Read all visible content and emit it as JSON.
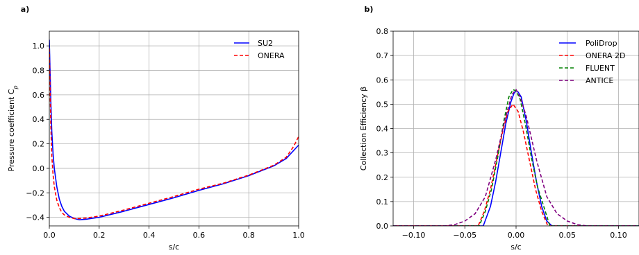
{
  "chart_data": [
    {
      "type": "line",
      "panel": "a)",
      "xlabel": "s/c",
      "ylabel": "Pressure coefficient C",
      "ylabel_sub": "p",
      "xlim": [
        0.0,
        1.0
      ],
      "ylim": [
        -0.47,
        1.12
      ],
      "xticks": [
        "0.0",
        "0.2",
        "0.4",
        "0.6",
        "0.8",
        "1.0"
      ],
      "yticks": [
        "−0.4",
        "−0.2",
        "0.0",
        "0.2",
        "0.4",
        "0.6",
        "0.8",
        "1.0"
      ],
      "grid": true,
      "legend_position": "top-right",
      "series": [
        {
          "name": "SU2",
          "color": "#0000ff",
          "style": "solid",
          "x": [
            0.0,
            0.003,
            0.006,
            0.01,
            0.015,
            0.02,
            0.03,
            0.04,
            0.05,
            0.06,
            0.08,
            0.1,
            0.12,
            0.15,
            0.2,
            0.3,
            0.4,
            0.5,
            0.6,
            0.7,
            0.8,
            0.9,
            0.95,
            1.0
          ],
          "y": [
            1.05,
            0.8,
            0.55,
            0.3,
            0.12,
            0.0,
            -0.15,
            -0.25,
            -0.31,
            -0.35,
            -0.39,
            -0.41,
            -0.42,
            -0.415,
            -0.4,
            -0.35,
            -0.295,
            -0.24,
            -0.18,
            -0.125,
            -0.06,
            0.02,
            0.08,
            0.19
          ]
        },
        {
          "name": "ONERA",
          "color": "#ff0000",
          "style": "dashed",
          "x": [
            0.0,
            0.003,
            0.006,
            0.01,
            0.015,
            0.02,
            0.03,
            0.04,
            0.05,
            0.06,
            0.08,
            0.1,
            0.12,
            0.15,
            0.2,
            0.3,
            0.4,
            0.5,
            0.6,
            0.7,
            0.8,
            0.9,
            0.95,
            0.98,
            1.0
          ],
          "y": [
            0.98,
            0.65,
            0.35,
            0.1,
            -0.05,
            -0.15,
            -0.26,
            -0.32,
            -0.36,
            -0.38,
            -0.4,
            -0.41,
            -0.41,
            -0.405,
            -0.39,
            -0.34,
            -0.285,
            -0.23,
            -0.17,
            -0.12,
            -0.055,
            0.025,
            0.09,
            0.18,
            0.26
          ]
        }
      ]
    },
    {
      "type": "line",
      "panel": "b)",
      "xlabel": "s/c",
      "ylabel": "Collection Efficiency β",
      "xlim": [
        -0.12,
        0.12
      ],
      "ylim": [
        0.0,
        0.8
      ],
      "xticks": [
        "−0.10",
        "−0.05",
        "0.00",
        "0.05",
        "0.10"
      ],
      "yticks": [
        "0.0",
        "0.1",
        "0.2",
        "0.3",
        "0.4",
        "0.5",
        "0.6",
        "0.7",
        "0.8"
      ],
      "grid": true,
      "legend_position": "top-right",
      "series": [
        {
          "name": "PoliDrop",
          "color": "#0000ff",
          "style": "solid",
          "x": [
            -0.12,
            -0.04,
            -0.032,
            -0.025,
            -0.02,
            -0.015,
            -0.01,
            -0.005,
            -0.002,
            0.0,
            0.002,
            0.005,
            0.01,
            0.015,
            0.02,
            0.025,
            0.03,
            0.035,
            0.04,
            0.12
          ],
          "y": [
            0.0,
            0.0,
            0.0,
            0.08,
            0.18,
            0.3,
            0.42,
            0.51,
            0.545,
            0.555,
            0.55,
            0.53,
            0.43,
            0.3,
            0.18,
            0.08,
            0.02,
            0.0,
            0.0,
            0.0
          ]
        },
        {
          "name": "ONERA 2D",
          "color": "#ff0000",
          "style": "dashed",
          "x": [
            -0.12,
            -0.045,
            -0.034,
            -0.028,
            -0.022,
            -0.016,
            -0.01,
            -0.005,
            0.0,
            0.005,
            0.01,
            0.016,
            0.022,
            0.028,
            0.034,
            0.045,
            0.12
          ],
          "y": [
            0.0,
            0.0,
            0.0,
            0.06,
            0.15,
            0.27,
            0.39,
            0.47,
            0.5,
            0.47,
            0.39,
            0.27,
            0.15,
            0.06,
            0.0,
            0.0,
            0.0
          ],
          "x_shift": -0.003
        },
        {
          "name": "FLUENT",
          "color": "#008000",
          "style": "dashed",
          "x": [
            -0.12,
            -0.045,
            -0.036,
            -0.03,
            -0.024,
            -0.018,
            -0.012,
            -0.007,
            -0.003,
            0.0,
            0.004,
            0.009,
            0.015,
            0.021,
            0.027,
            0.033,
            0.045,
            0.12
          ],
          "y": [
            0.0,
            0.0,
            0.0,
            0.06,
            0.15,
            0.28,
            0.43,
            0.53,
            0.56,
            0.555,
            0.52,
            0.42,
            0.28,
            0.16,
            0.08,
            0.0,
            0.0,
            0.0
          ]
        },
        {
          "name": "ANTICE",
          "color": "#800080",
          "style": "dashed",
          "x": [
            -0.12,
            -0.07,
            -0.06,
            -0.05,
            -0.04,
            -0.03,
            -0.02,
            -0.01,
            -0.004,
            0.0,
            0.004,
            0.01,
            0.02,
            0.03,
            0.04,
            0.05,
            0.06,
            0.07,
            0.12
          ],
          "y": [
            0.0,
            0.0,
            0.005,
            0.02,
            0.05,
            0.12,
            0.27,
            0.45,
            0.54,
            0.56,
            0.53,
            0.45,
            0.27,
            0.12,
            0.05,
            0.02,
            0.005,
            0.0,
            0.0
          ]
        }
      ]
    }
  ]
}
